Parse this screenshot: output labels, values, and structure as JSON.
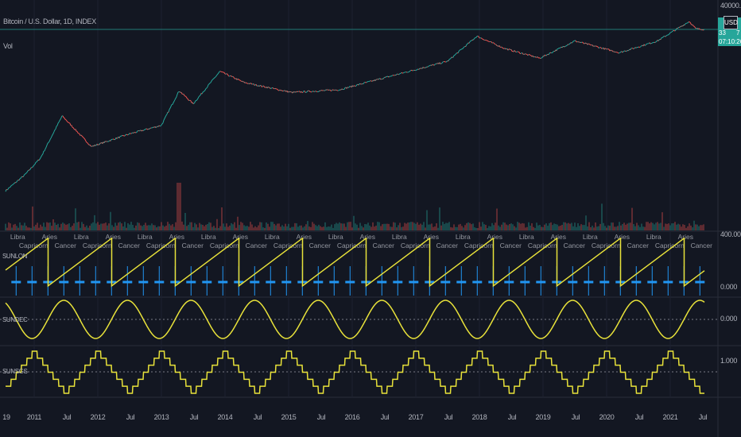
{
  "header": {
    "symbol_title": "Bitcoin / U.S. Dollar, 1D, INDEX",
    "volume_label": "Vol"
  },
  "price_axis": {
    "top_label": "40000.00",
    "currency": "USD",
    "last_price_visible_prefix": "33",
    "last_price_visible_suffix": "7",
    "countdown": "07:10:26",
    "scale": "log"
  },
  "panes": [
    {
      "name": "SUNLON",
      "axis_labels": [
        "400.000",
        "0.000"
      ]
    },
    {
      "name": "SUNDEC",
      "axis_labels": [
        "0.000"
      ]
    },
    {
      "name": "SUNSGS",
      "axis_labels": [
        "1.000"
      ]
    }
  ],
  "zodiac_labels": {
    "0": "Aries",
    "90": "Cancer",
    "180": "Libra",
    "270": "Capricorn"
  },
  "time_axis": [
    "19",
    "2011",
    "Jul",
    "2012",
    "Jul",
    "2013",
    "Jul",
    "2014",
    "Jul",
    "2015",
    "Jul",
    "2016",
    "Jul",
    "2017",
    "Jul",
    "2018",
    "Jul",
    "2019",
    "Jul",
    "2020",
    "Jul",
    "2021",
    "Jul"
  ],
  "colors": {
    "background": "#131722",
    "up": "#26a69a",
    "down": "#ef5350",
    "indicator": "#e8e23a",
    "ingress": "#2196f3",
    "last_price": "#26a69a"
  },
  "chart_data": {
    "type": "line",
    "price_series": [
      {
        "date": 2010.55,
        "price": 0.07
      },
      {
        "date": 2010.85,
        "price": 0.25
      },
      {
        "date": 2011.1,
        "price": 1
      },
      {
        "date": 2011.44,
        "price": 30
      },
      {
        "date": 2011.9,
        "price": 2.5
      },
      {
        "date": 2012.5,
        "price": 7
      },
      {
        "date": 2013.0,
        "price": 14
      },
      {
        "date": 2013.28,
        "price": 230
      },
      {
        "date": 2013.5,
        "price": 80
      },
      {
        "date": 2013.92,
        "price": 1100
      },
      {
        "date": 2014.3,
        "price": 450
      },
      {
        "date": 2015.05,
        "price": 200
      },
      {
        "date": 2015.8,
        "price": 250
      },
      {
        "date": 2016.5,
        "price": 650
      },
      {
        "date": 2017.5,
        "price": 2500
      },
      {
        "date": 2017.96,
        "price": 19000
      },
      {
        "date": 2018.4,
        "price": 7000
      },
      {
        "date": 2018.95,
        "price": 3200
      },
      {
        "date": 2019.5,
        "price": 13000
      },
      {
        "date": 2020.2,
        "price": 5000
      },
      {
        "date": 2020.8,
        "price": 13000
      },
      {
        "date": 2021.3,
        "price": 63000
      },
      {
        "date": 2021.4,
        "price": 35000
      },
      {
        "date": 2021.54,
        "price": 33000
      }
    ]
  }
}
